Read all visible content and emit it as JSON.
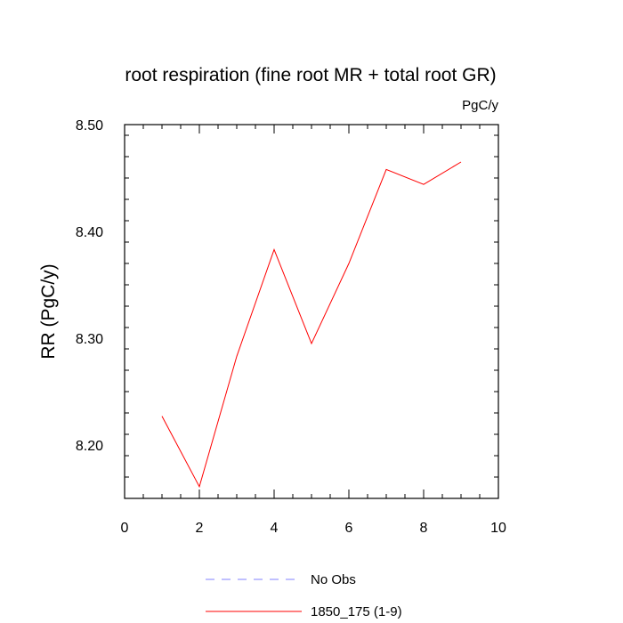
{
  "chart_data": {
    "type": "line",
    "title": "root respiration (fine root MR + total root GR)",
    "units_label": "PgC/y",
    "xlabel": "",
    "ylabel": "RR  (PgC/y)",
    "xlim": [
      0,
      10
    ],
    "ylim": [
      8.15,
      8.5
    ],
    "x_ticks": [
      0,
      2,
      4,
      6,
      8,
      10
    ],
    "x_tick_labels": [
      "0",
      "2",
      "4",
      "6",
      "8",
      "10"
    ],
    "y_ticks": [
      8.2,
      8.3,
      8.4,
      8.5
    ],
    "y_tick_labels": [
      "8.20",
      "8.30",
      "8.40",
      "8.50"
    ],
    "grid": false,
    "legend_position": "bottom",
    "series": [
      {
        "name": "1850_175 (1-9)",
        "color": "#ff0000",
        "dash": "solid",
        "x": [
          1,
          2,
          3,
          4,
          5,
          6,
          7,
          8,
          9
        ],
        "values": [
          8.227,
          8.161,
          8.283,
          8.383,
          8.295,
          8.37,
          8.458,
          8.444,
          8.465
        ]
      }
    ],
    "legend": [
      {
        "label": "No Obs",
        "color": "#8080ff",
        "dash": "dashed"
      },
      {
        "label": "1850_175 (1-9)",
        "color": "#ff0000",
        "dash": "solid"
      }
    ]
  }
}
